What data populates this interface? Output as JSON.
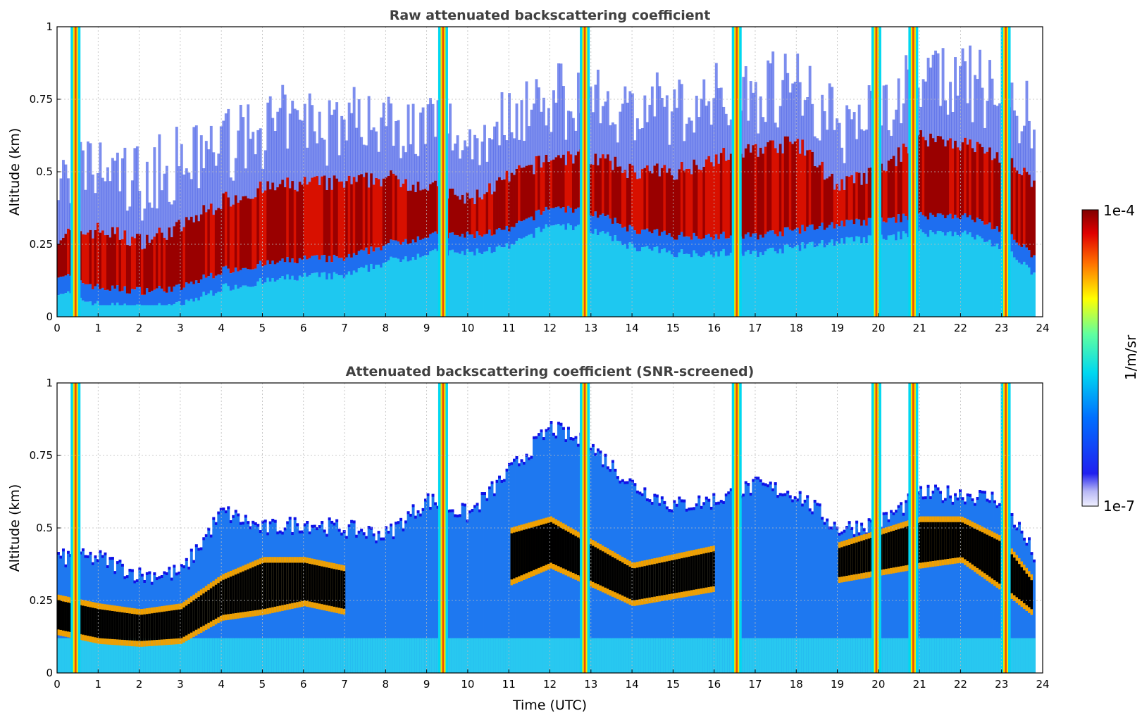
{
  "chart_data": [
    {
      "type": "heatmap",
      "title": "Raw attenuated backscattering coefficient",
      "xlabel": "",
      "ylabel": "Altitude (km)",
      "xlim": [
        0,
        24
      ],
      "ylim": [
        0,
        1
      ],
      "x_ticks": [
        "0",
        "1",
        "2",
        "3",
        "4",
        "5",
        "6",
        "7",
        "8",
        "9",
        "10",
        "11",
        "12",
        "13",
        "14",
        "15",
        "16",
        "17",
        "18",
        "19",
        "20",
        "21",
        "22",
        "23",
        "24"
      ],
      "y_ticks": [
        "0",
        "0.25",
        "0.5",
        "0.75",
        "1"
      ],
      "grid": true,
      "layer_top_km": [
        [
          0,
          0.28
        ],
        [
          1,
          0.3
        ],
        [
          2,
          0.26
        ],
        [
          3,
          0.31
        ],
        [
          4,
          0.4
        ],
        [
          5,
          0.44
        ],
        [
          6,
          0.46
        ],
        [
          7,
          0.46
        ],
        [
          8,
          0.48
        ],
        [
          9,
          0.45
        ],
        [
          10,
          0.4
        ],
        [
          11,
          0.48
        ],
        [
          12,
          0.55
        ],
        [
          13,
          0.55
        ],
        [
          14,
          0.5
        ],
        [
          15,
          0.5
        ],
        [
          16,
          0.55
        ],
        [
          17,
          0.58
        ],
        [
          18,
          0.6
        ],
        [
          19,
          0.45
        ],
        [
          20,
          0.5
        ],
        [
          21,
          0.62
        ],
        [
          22,
          0.6
        ],
        [
          23,
          0.55
        ],
        [
          23.8,
          0.45
        ]
      ],
      "layer_bottom_km": [
        [
          0,
          0.15
        ],
        [
          1,
          0.1
        ],
        [
          2,
          0.09
        ],
        [
          3,
          0.1
        ],
        [
          4,
          0.16
        ],
        [
          5,
          0.18
        ],
        [
          6,
          0.2
        ],
        [
          7,
          0.2
        ],
        [
          8,
          0.25
        ],
        [
          9,
          0.28
        ],
        [
          10,
          0.28
        ],
        [
          11,
          0.3
        ],
        [
          12,
          0.38
        ],
        [
          13,
          0.36
        ],
        [
          14,
          0.3
        ],
        [
          15,
          0.28
        ],
        [
          16,
          0.28
        ],
        [
          17,
          0.28
        ],
        [
          18,
          0.3
        ],
        [
          19,
          0.32
        ],
        [
          20,
          0.33
        ],
        [
          21,
          0.35
        ],
        [
          22,
          0.35
        ],
        [
          23,
          0.3
        ],
        [
          23.8,
          0.2
        ]
      ],
      "precip_columns_utc": [
        0.45,
        9.4,
        12.85,
        16.55,
        19.95,
        20.85,
        23.1
      ],
      "valid_until_utc": 23.8
    },
    {
      "type": "heatmap",
      "title": "Attenuated backscattering coefficient (SNR-screened)",
      "xlabel": "Time (UTC)",
      "ylabel": "Altitude (km)",
      "xlim": [
        0,
        24
      ],
      "ylim": [
        0,
        1
      ],
      "x_ticks": [
        "0",
        "1",
        "2",
        "3",
        "4",
        "5",
        "6",
        "7",
        "8",
        "9",
        "10",
        "11",
        "12",
        "13",
        "14",
        "15",
        "16",
        "17",
        "18",
        "19",
        "20",
        "21",
        "22",
        "23",
        "24"
      ],
      "y_ticks": [
        "0",
        "0.25",
        "0.5",
        "0.75",
        "1"
      ],
      "grid": true,
      "signal_top_km": [
        [
          0,
          0.4
        ],
        [
          1,
          0.4
        ],
        [
          2,
          0.34
        ],
        [
          3,
          0.35
        ],
        [
          4,
          0.56
        ],
        [
          5,
          0.5
        ],
        [
          6,
          0.52
        ],
        [
          7,
          0.5
        ],
        [
          8,
          0.48
        ],
        [
          9,
          0.6
        ],
        [
          10,
          0.55
        ],
        [
          11,
          0.7
        ],
        [
          12,
          0.85
        ],
        [
          13,
          0.78
        ],
        [
          14,
          0.65
        ],
        [
          15,
          0.58
        ],
        [
          16,
          0.6
        ],
        [
          17,
          0.65
        ],
        [
          18,
          0.62
        ],
        [
          19,
          0.5
        ],
        [
          20,
          0.52
        ],
        [
          21,
          0.62
        ],
        [
          22,
          0.62
        ],
        [
          23,
          0.6
        ],
        [
          23.8,
          0.4
        ]
      ],
      "saturated_layer_km": [
        [
          0,
          0.15,
          0.25
        ],
        [
          1,
          0.12,
          0.22
        ],
        [
          2,
          0.11,
          0.2
        ],
        [
          3,
          0.12,
          0.22
        ],
        [
          4,
          0.2,
          0.32
        ],
        [
          5,
          0.22,
          0.38
        ],
        [
          6,
          0.25,
          0.38
        ],
        [
          7,
          0.22,
          0.35
        ],
        [
          11,
          0.32,
          0.48
        ],
        [
          12,
          0.38,
          0.52
        ],
        [
          14,
          0.25,
          0.36
        ],
        [
          16,
          0.3,
          0.42
        ],
        [
          19,
          0.33,
          0.43
        ],
        [
          21,
          0.38,
          0.52
        ],
        [
          22,
          0.4,
          0.52
        ],
        [
          23,
          0.3,
          0.45
        ],
        [
          23.7,
          0.22,
          0.32
        ]
      ],
      "precip_columns_utc": [
        0.45,
        9.4,
        12.85,
        16.55,
        19.95,
        20.85,
        23.1
      ],
      "valid_until_utc": 23.8
    }
  ],
  "colorbar": {
    "label": "1/m/sr",
    "max_label": "1e-4",
    "min_label": "1e-7",
    "scale": "log",
    "colormap": "jet"
  },
  "colors": {
    "grid": "#bbbbbb",
    "title": "#404040",
    "saturated": "#000000"
  }
}
